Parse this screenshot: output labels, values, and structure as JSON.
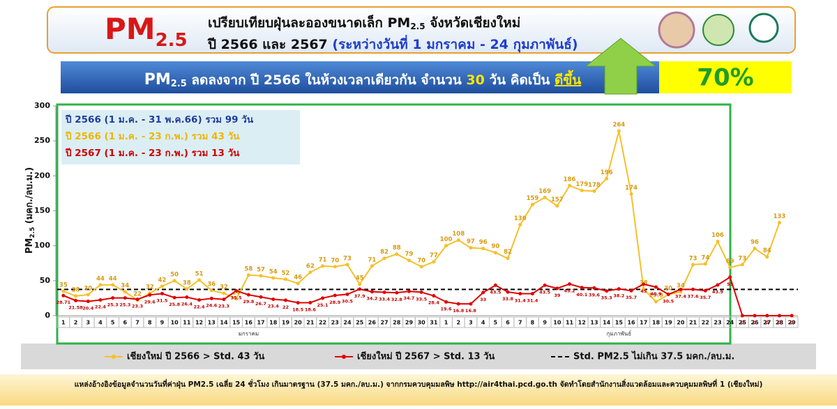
{
  "header": {
    "logo_main": "PM",
    "logo_sub": "2.5",
    "title_a": "เปรียบเทียบฝุ่นละอองขนาดเล็ก PM",
    "title_sub": "2.5",
    "title_b": " จังหวัดเชียงใหม่",
    "subtitle_a": "ปี 2566 และ 2567 ",
    "subtitle_b": "(ระหว่างวันที่ 1 มกราคม - 24 กุมภาพันธ์)"
  },
  "banner": {
    "pm": "PM",
    "pm_sub": "2.5",
    "text_a": " ลดลงจาก ปี 2566 ในห้วงเวลาเดียวกัน จำนวน ",
    "days": "30",
    "text_b": " วัน คิดเป็น ",
    "result": "ดีขึ้น",
    "percent": "70%"
  },
  "info_box": [
    {
      "text": "ปี 2566 (1 ม.ค. - 31 พ.ค.66) รวม 99 วัน",
      "color": "#1f3d99"
    },
    {
      "text": "ปี 2566 (1 ม.ค. - 23 ก.พ.)       รวม 43 วัน",
      "color": "#f0b400"
    },
    {
      "text": "ปี 2567 (1 ม.ค. - 23 ก.พ.)       รวม 13 วัน",
      "color": "#d00000"
    }
  ],
  "chart_data": {
    "type": "line",
    "ylabel_a": "PM",
    "ylabel_sub": "2.5",
    "ylabel_b": " (มคก./ลบ.ม.)",
    "categories": [
      "1",
      "2",
      "3",
      "4",
      "5",
      "6",
      "7",
      "8",
      "9",
      "10",
      "11",
      "12",
      "13",
      "14",
      "15",
      "16",
      "17",
      "18",
      "19",
      "20",
      "21",
      "22",
      "23",
      "24",
      "25",
      "26",
      "27",
      "28",
      "29",
      "30",
      "31",
      "1",
      "2",
      "3",
      "4",
      "5",
      "6",
      "7",
      "8",
      "9",
      "10",
      "11",
      "12",
      "13",
      "14",
      "15",
      "16",
      "17",
      "18",
      "19",
      "20",
      "21",
      "22",
      "23",
      "24",
      "25",
      "26",
      "27",
      "28",
      "29"
    ],
    "month_labels": [
      "มกราคม",
      "กุมภาพันธ์"
    ],
    "ylim": [
      0,
      300
    ],
    "yticks": [
      0,
      50,
      100,
      150,
      200,
      250,
      300
    ],
    "series": [
      {
        "name": "เชียงใหม่ ปี 2566 > Std. 43 วัน",
        "color": "#f5c02a",
        "values": [
          35,
          28,
          30,
          44,
          44,
          34,
          22,
          32,
          42,
          50,
          38,
          51,
          36,
          32,
          24,
          58,
          57,
          54,
          52,
          46,
          62,
          71,
          70,
          73,
          45,
          71,
          82,
          88,
          79,
          70,
          77,
          100,
          108,
          97,
          96,
          90,
          82,
          130,
          159,
          169,
          157,
          186,
          179,
          178,
          196,
          264,
          174,
          38,
          19.9,
          30,
          34,
          73,
          74,
          106,
          69,
          73,
          96,
          84,
          133,
          null
        ]
      },
      {
        "name": "เชียงใหม่ ปี 2567 > Std. 13 วัน",
        "color": "#e00000",
        "values": [
          28.71,
          21.58,
          20.4,
          22.4,
          25.3,
          25.3,
          23.3,
          29.6,
          31.5,
          25.8,
          26.4,
          22.4,
          24.6,
          23.3,
          35.5,
          29.8,
          26.7,
          23.4,
          22,
          18.5,
          18.6,
          25.1,
          28.9,
          30.5,
          37.9,
          34.2,
          33.4,
          32.8,
          34.7,
          33.5,
          28.4,
          19.6,
          16.8,
          16.8,
          33,
          43.5,
          33.8,
          31.4,
          31.4,
          43.5,
          39,
          45.2,
          40.1,
          39.6,
          35.3,
          38.2,
          35.7,
          45,
          40.9,
          30.5,
          37.4,
          37.6,
          35.7,
          43.9,
          55,
          0,
          0,
          0,
          0,
          0
        ]
      }
    ],
    "std_line": {
      "value": 37.5,
      "name": "Std. PM2.5 ไม่เกิน 37.5 มคก./ลบ.ม."
    }
  },
  "footer": "แหล่งอ้างอิงข้อมูลจำนวนวันที่ค่าฝุ่น PM2.5 เฉลี่ย 24 ชั่วโมง เกินมาตรฐาน (37.5 มคก./ลบ.ม.) จากกรมควบคุมมลพิษ http://air4thai.pcd.go.th  จัดทำโดยสำนักงานสิ่งแวดล้อมและควบคุมมลพิษที่ 1 (เชียงใหม่)"
}
